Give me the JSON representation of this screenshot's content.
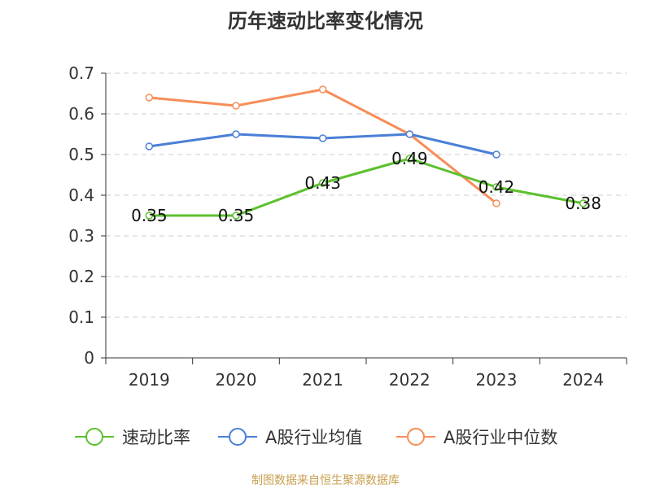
{
  "chart_data": {
    "type": "line",
    "title": "历年速动比率变化情况",
    "categories": [
      "2019",
      "2020",
      "2021",
      "2022",
      "2023",
      "2024"
    ],
    "ylim": [
      0,
      0.7
    ],
    "yticks": [
      "0",
      "0.1",
      "0.2",
      "0.3",
      "0.4",
      "0.5",
      "0.6",
      "0.7"
    ],
    "ytick_values": [
      0,
      0.1,
      0.2,
      0.3,
      0.4,
      0.5,
      0.6,
      0.7
    ],
    "grid": true,
    "legend_position": "bottom",
    "series": [
      {
        "name": "速动比率",
        "color": "#5cc02e",
        "values": [
          0.35,
          0.35,
          0.43,
          0.49,
          0.42,
          0.38
        ],
        "labels": [
          "0.35",
          "0.35",
          "0.43",
          "0.49",
          "0.42",
          "0.38"
        ]
      },
      {
        "name": "A股行业均值",
        "color": "#4a7fd6",
        "values": [
          0.52,
          0.55,
          0.54,
          0.55,
          0.5,
          null
        ]
      },
      {
        "name": "A股行业中位数",
        "color": "#f78d57",
        "values": [
          0.64,
          0.62,
          0.66,
          0.55,
          0.38,
          null
        ]
      }
    ],
    "source": "制图数据来自恒生聚源数据库"
  }
}
